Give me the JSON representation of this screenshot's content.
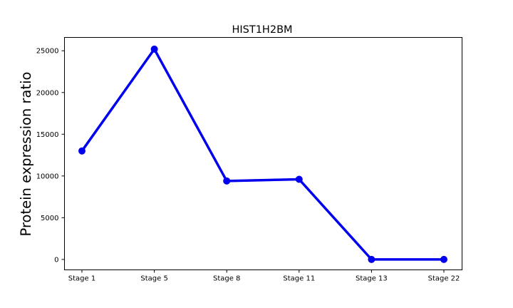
{
  "chart_data": {
    "type": "line",
    "title": "HIST1H2BM",
    "xlabel": "",
    "ylabel": "Protein expression ratio",
    "categories": [
      "Stage 1",
      "Stage 5",
      "Stage 8",
      "Stage 11",
      "Stage 13",
      "Stage 22"
    ],
    "series": [
      {
        "values": [
          13000,
          25200,
          9400,
          9600,
          0,
          0
        ]
      }
    ],
    "yticks": [
      0,
      5000,
      10000,
      15000,
      20000,
      25000
    ],
    "ylim": [
      -1250,
      26600
    ],
    "grid": false,
    "legend": "none",
    "colors": {
      "line": "#0000ee",
      "marker": "#0000ee"
    }
  }
}
